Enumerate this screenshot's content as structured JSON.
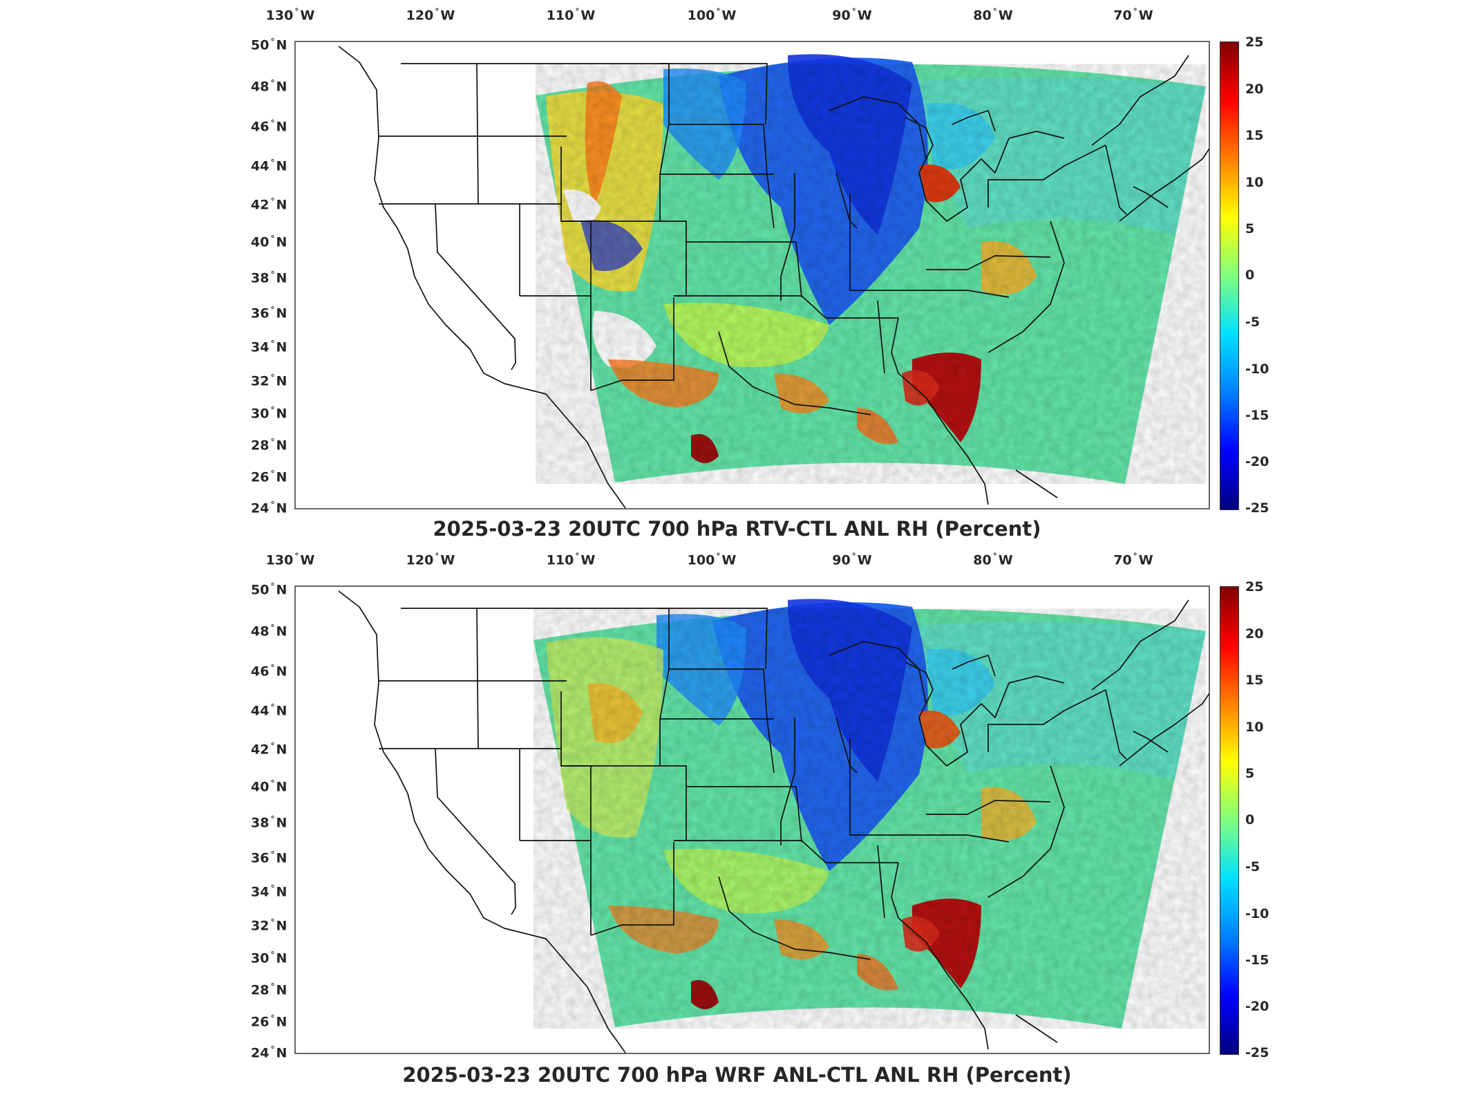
{
  "panels": [
    {
      "id": "top",
      "title": "2025-03-23 20UTC 700 hPa RTV-CTL ANL RH (Percent)",
      "lon_labels": [
        "130",
        "120",
        "110",
        "100",
        "90",
        "80",
        "70"
      ],
      "lat_labels": [
        "50",
        "48",
        "46",
        "44",
        "42",
        "40",
        "38",
        "36",
        "34",
        "32",
        "30",
        "28",
        "26",
        "24"
      ],
      "colorbar_ticks": [
        "25",
        "20",
        "15",
        "10",
        "5",
        "0",
        "-5",
        "-10",
        "-15",
        "-20",
        "-25"
      ]
    },
    {
      "id": "bottom",
      "title": "2025-03-23 20UTC 700 hPa WRF ANL-CTL ANL RH (Percent)",
      "lon_labels": [
        "130",
        "120",
        "110",
        "100",
        "90",
        "80",
        "70"
      ],
      "lat_labels": [
        "50",
        "48",
        "46",
        "44",
        "42",
        "40",
        "38",
        "36",
        "34",
        "32",
        "30",
        "28",
        "26",
        "24"
      ],
      "colorbar_ticks": [
        "25",
        "20",
        "15",
        "10",
        "5",
        "0",
        "-5",
        "-10",
        "-15",
        "-20",
        "-25"
      ]
    }
  ],
  "units": {
    "west": "W",
    "north": "N"
  },
  "colormap": [
    "#000080",
    "#0000ff",
    "#0080ff",
    "#00e0ff",
    "#80ff80",
    "#ffff00",
    "#ff8000",
    "#ff0000",
    "#800000"
  ],
  "colorbar_range": [
    -25,
    25
  ]
}
